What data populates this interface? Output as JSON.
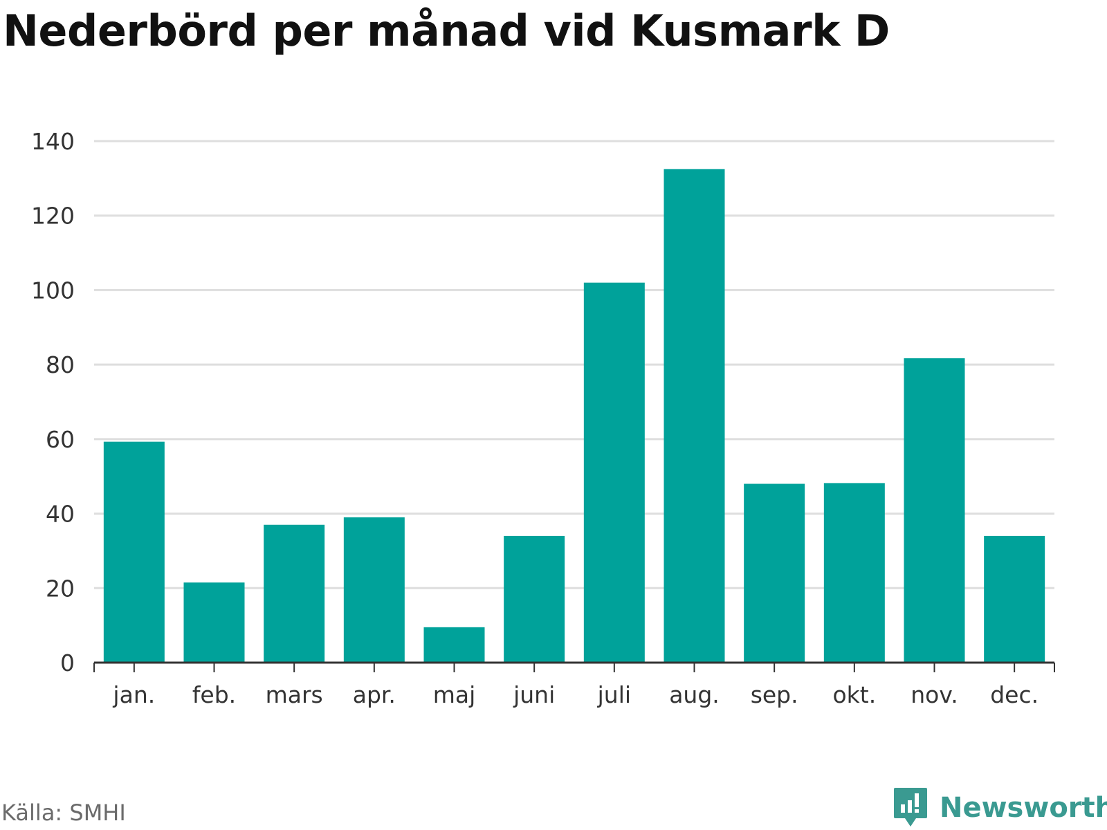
{
  "title": "Nederbörd per månad vid Kusmark D",
  "source": "Källa: SMHI",
  "brand": {
    "name": "Newsworthy",
    "icon": "bar-chart-speech-icon",
    "color": "#3a9a91"
  },
  "colors": {
    "bar": "#00a29a",
    "grid": "#dedede",
    "axis": "#333333"
  },
  "chart_data": {
    "type": "bar",
    "categories": [
      "jan.",
      "feb.",
      "mars",
      "apr.",
      "maj",
      "juni",
      "juli",
      "aug.",
      "sep.",
      "okt.",
      "nov.",
      "dec."
    ],
    "values": [
      59.3,
      21.5,
      37,
      39,
      9.5,
      34,
      102,
      132.5,
      48,
      48.2,
      81.7,
      34
    ],
    "yticks": [
      0,
      20,
      40,
      60,
      80,
      100,
      120,
      140
    ],
    "ylim": [
      0,
      140
    ],
    "grid": true,
    "legend": "none",
    "xlabel": "",
    "ylabel": ""
  }
}
